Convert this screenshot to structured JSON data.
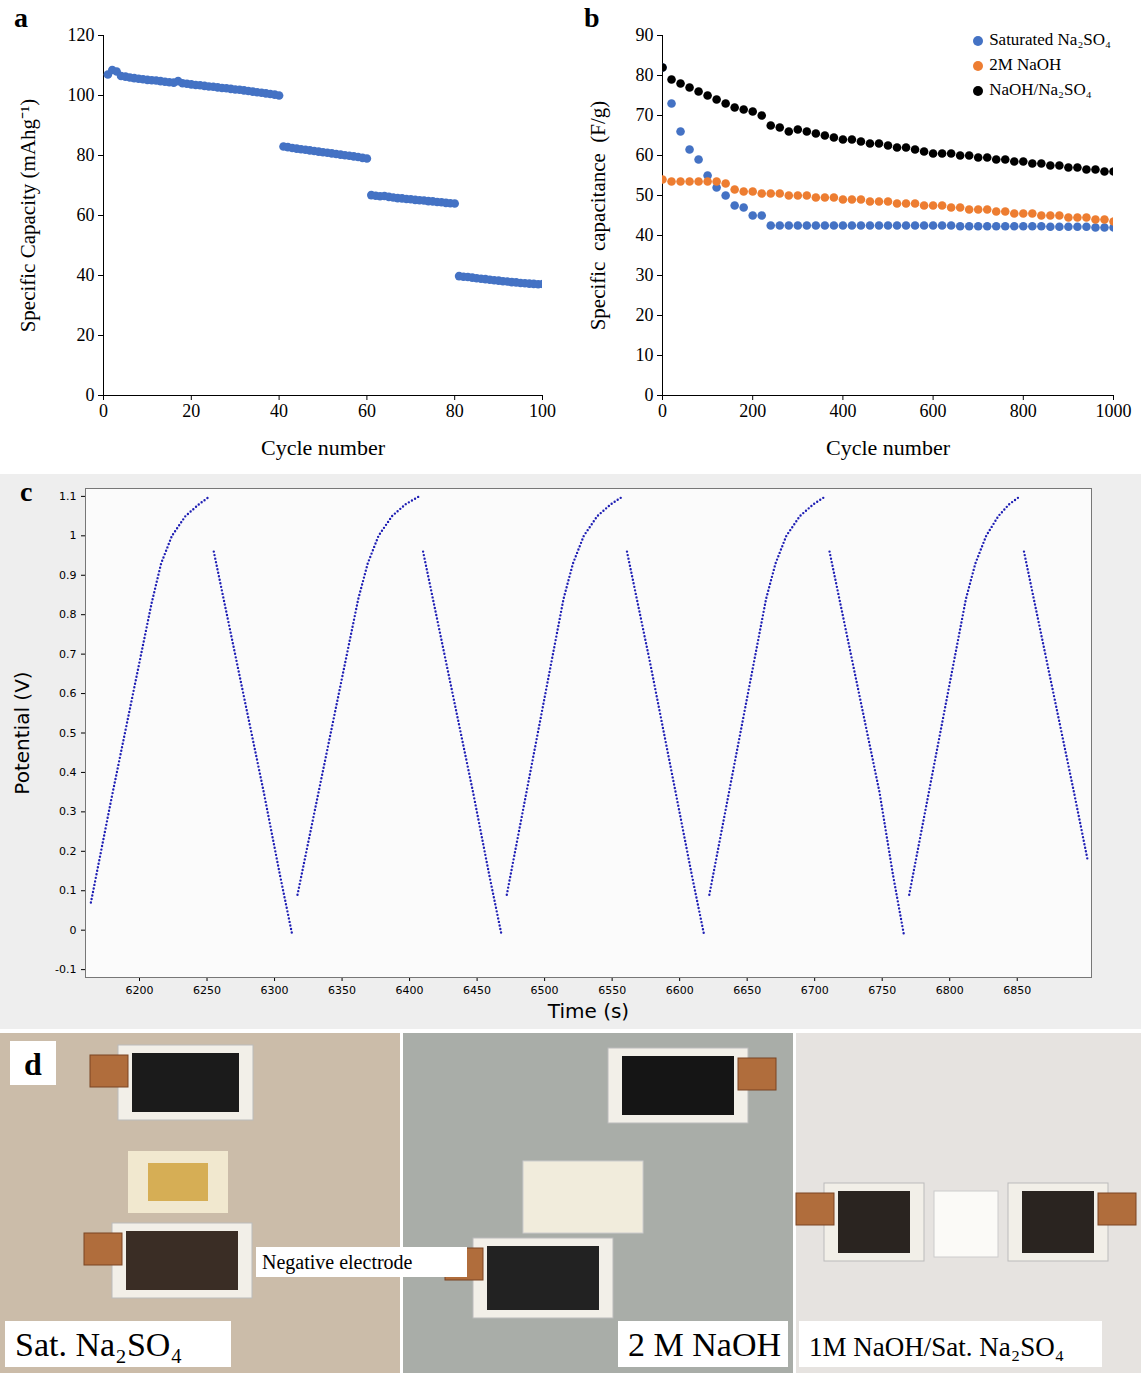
{
  "chart_data": [
    {
      "panel": "a",
      "type": "scatter",
      "marker": "circle",
      "color": "#4472c4",
      "x_label": "Cycle number",
      "y_label": "Specific Capacity (mAhg⁻¹)",
      "x": [
        1,
        2,
        3,
        4,
        5,
        6,
        7,
        8,
        9,
        10,
        11,
        12,
        13,
        14,
        15,
        16,
        17,
        18,
        19,
        20,
        21,
        22,
        23,
        24,
        25,
        26,
        27,
        28,
        29,
        30,
        31,
        32,
        33,
        34,
        35,
        36,
        37,
        38,
        39,
        40,
        41,
        42,
        43,
        44,
        45,
        46,
        47,
        48,
        49,
        50,
        51,
        52,
        53,
        54,
        55,
        56,
        57,
        58,
        59,
        60,
        61,
        62,
        63,
        64,
        65,
        66,
        67,
        68,
        69,
        70,
        71,
        72,
        73,
        74,
        75,
        76,
        77,
        78,
        79,
        80,
        81,
        82,
        83,
        84,
        85,
        86,
        87,
        88,
        89,
        90,
        91,
        92,
        93,
        94,
        95,
        96,
        97,
        98,
        99,
        100
      ],
      "values": [
        107,
        108.5,
        108,
        106.5,
        106.3,
        106,
        105.8,
        105.6,
        105.4,
        105.2,
        105.1,
        105,
        104.8,
        104.6,
        104.4,
        104.3,
        104.8,
        104.1,
        103.9,
        103.7,
        103.5,
        103.4,
        103.2,
        103,
        102.9,
        102.7,
        102.5,
        102.4,
        102.2,
        102,
        101.9,
        101.7,
        101.5,
        101.3,
        101.1,
        100.9,
        100.7,
        100.5,
        100.3,
        100,
        83,
        82.8,
        82.5,
        82.3,
        82.1,
        81.9,
        81.7,
        81.5,
        81.3,
        81.1,
        80.9,
        80.7,
        80.5,
        80.3,
        80.1,
        79.9,
        79.7,
        79.5,
        79.2,
        79,
        66.8,
        66.6,
        66.4,
        66.5,
        66.2,
        66,
        65.8,
        65.7,
        65.5,
        65.4,
        65.2,
        65.1,
        65,
        64.8,
        64.7,
        64.5,
        64.4,
        64.2,
        64.1,
        64,
        39.8,
        39.6,
        39.5,
        39.3,
        39.1,
        38.9,
        38.8,
        38.6,
        38.4,
        38.3,
        38.1,
        38,
        37.8,
        37.7,
        37.5,
        37.4,
        37.3,
        37.2,
        37.1,
        37.2
      ],
      "xlim": [
        0,
        100
      ],
      "xticks": [
        0,
        20,
        40,
        60,
        80,
        100
      ],
      "ylim": [
        0,
        120
      ],
      "yticks": [
        0,
        20,
        40,
        60,
        80,
        100,
        120
      ]
    },
    {
      "panel": "b",
      "type": "scatter",
      "marker": "circle",
      "legend": "top-right",
      "x_label": "Cycle number",
      "y_label": "Specific  capacitance  (F/g)",
      "x": [
        0,
        20,
        40,
        60,
        80,
        100,
        120,
        140,
        160,
        180,
        200,
        220,
        240,
        260,
        280,
        300,
        320,
        340,
        360,
        380,
        400,
        420,
        440,
        460,
        480,
        500,
        520,
        540,
        560,
        580,
        600,
        620,
        640,
        660,
        680,
        700,
        720,
        740,
        760,
        780,
        800,
        820,
        840,
        860,
        880,
        900,
        920,
        940,
        960,
        980,
        1000
      ],
      "series": [
        {
          "name": "Saturated Na₂SO₄",
          "color": "#4472c4",
          "values": [
            82,
            73,
            66,
            61.5,
            59,
            55,
            52,
            50,
            47.5,
            47,
            45,
            45,
            42.5,
            42.5,
            42.5,
            42.5,
            42.5,
            42.5,
            42.5,
            42.5,
            42.5,
            42.5,
            42.5,
            42.5,
            42.5,
            42.5,
            42.5,
            42.5,
            42.5,
            42.5,
            42.5,
            42.5,
            42.5,
            42.3,
            42.3,
            42.3,
            42.3,
            42.3,
            42.3,
            42.3,
            42.3,
            42.3,
            42.3,
            42.2,
            42.2,
            42.2,
            42.2,
            42.2,
            42,
            42,
            42
          ]
        },
        {
          "name": "2M NaOH",
          "color": "#ed7d31",
          "values": [
            54,
            53.5,
            53.5,
            53.5,
            53.5,
            53.5,
            53.5,
            53,
            51.5,
            51,
            51,
            50.5,
            50.5,
            50.5,
            50,
            50,
            50,
            49.5,
            49.5,
            49.5,
            49,
            49,
            49,
            48.5,
            48.5,
            48.5,
            48,
            48,
            48,
            47.5,
            47.5,
            47.5,
            47,
            47,
            46.5,
            46.5,
            46.5,
            46,
            46,
            45.5,
            45.5,
            45.5,
            45,
            45,
            45,
            44.5,
            44.5,
            44.5,
            44,
            44,
            43.5
          ]
        },
        {
          "name": "NaOH/Na₂SO₄",
          "color": "#000000",
          "values": [
            82,
            79,
            78,
            77,
            76,
            75,
            74,
            73,
            72,
            71.5,
            71,
            70,
            67.5,
            67,
            66,
            66.5,
            66,
            65.5,
            65,
            64.5,
            64,
            64,
            63.5,
            63,
            63,
            62.5,
            62,
            62,
            61.5,
            61,
            60.5,
            60.5,
            60.5,
            60,
            60,
            59.5,
            59.5,
            59,
            59,
            58.5,
            58.5,
            58,
            58,
            57.5,
            57.5,
            57,
            57,
            56.5,
            56.5,
            56,
            56
          ]
        }
      ],
      "xlim": [
        0,
        1000
      ],
      "xticks": [
        0,
        200,
        400,
        600,
        800,
        1000
      ],
      "ylim": [
        0,
        90
      ],
      "yticks": [
        0,
        10,
        20,
        30,
        40,
        50,
        60,
        70,
        80,
        90
      ]
    },
    {
      "panel": "c",
      "type": "line",
      "line_style": "dotted",
      "color": "#1f1fb4",
      "x_label": "Time (s)",
      "y_label": "Potential (V)",
      "x": [
        6164,
        6179,
        6194,
        6209,
        6216,
        6224,
        6234,
        6244,
        6252,
        6254,
        6255,
        6272,
        6292,
        6304,
        6313,
        6315,
        6317,
        6332,
        6347,
        6362,
        6369,
        6377,
        6387,
        6397,
        6407,
        6409,
        6410,
        6427,
        6447,
        6459,
        6468,
        6470,
        6472,
        6486,
        6500,
        6514,
        6521,
        6529,
        6539,
        6549,
        6558,
        6560,
        6561,
        6578,
        6597,
        6609,
        6618,
        6620,
        6622,
        6636,
        6650,
        6664,
        6671,
        6679,
        6689,
        6699,
        6708,
        6710,
        6711,
        6728,
        6748,
        6758,
        6766,
        6768,
        6770,
        6784,
        6798,
        6812,
        6819,
        6827,
        6836,
        6844,
        6852,
        6854,
        6855,
        6872,
        6892,
        6902
      ],
      "values": [
        0.07,
        0.33,
        0.58,
        0.83,
        0.93,
        1,
        1.05,
        1.08,
        1.1,
        null,
        0.96,
        0.68,
        0.35,
        0.14,
        -0.01,
        null,
        0.09,
        0.34,
        0.59,
        0.84,
        0.93,
        1,
        1.05,
        1.08,
        1.1,
        null,
        0.96,
        0.68,
        0.35,
        0.14,
        -0.01,
        null,
        0.09,
        0.34,
        0.59,
        0.84,
        0.93,
        1,
        1.05,
        1.08,
        1.1,
        null,
        0.96,
        0.68,
        0.35,
        0.14,
        -0.01,
        null,
        0.09,
        0.34,
        0.59,
        0.84,
        0.93,
        1,
        1.05,
        1.08,
        1.1,
        null,
        0.96,
        0.68,
        0.35,
        0.14,
        -0.01,
        null,
        0.09,
        0.34,
        0.59,
        0.84,
        0.93,
        1,
        1.05,
        1.08,
        1.1,
        null,
        0.96,
        0.68,
        0.35,
        0.18
      ],
      "xlim": [
        6160,
        6905
      ],
      "xticks": [
        6200,
        6250,
        6300,
        6350,
        6400,
        6450,
        6500,
        6550,
        6600,
        6650,
        6700,
        6750,
        6800,
        6850
      ],
      "ylim": [
        -0.12,
        1.12
      ],
      "yticks": [
        -0.1,
        0,
        0.1,
        0.2,
        0.3,
        0.4,
        0.5,
        0.6,
        0.7,
        0.8,
        0.9,
        1,
        1.1
      ]
    }
  ],
  "photo_panel": {
    "panel": "d",
    "captions": [
      "Sat. Na₂SO₄",
      "2 M NaOH",
      "1M NaOH/Sat. Na₂SO₄"
    ],
    "annotation": "Negative electrode"
  }
}
